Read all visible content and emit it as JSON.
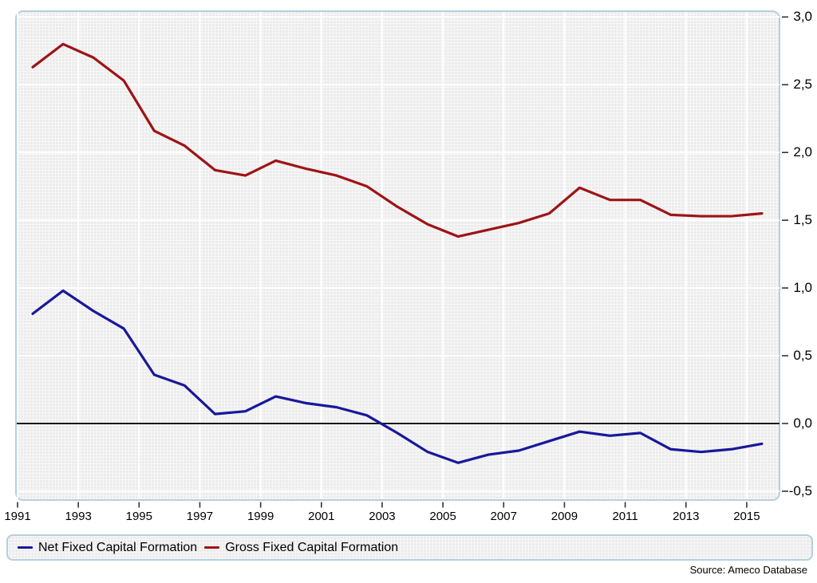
{
  "chart_data": {
    "type": "line",
    "x": [
      1991,
      1992,
      1993,
      1994,
      1995,
      1996,
      1997,
      1998,
      1999,
      2000,
      2001,
      2002,
      2003,
      2004,
      2005,
      2006,
      2007,
      2008,
      2009,
      2010,
      2011,
      2012,
      2013,
      2014,
      2015
    ],
    "series": [
      {
        "name": "Net Fixed Capital Formation",
        "color": "#18189b",
        "values": [
          0.81,
          0.98,
          0.83,
          0.7,
          0.36,
          0.28,
          0.07,
          0.09,
          0.2,
          0.15,
          0.12,
          0.06,
          -0.07,
          -0.21,
          -0.29,
          -0.23,
          -0.2,
          -0.13,
          -0.06,
          -0.09,
          -0.07,
          -0.19,
          -0.21,
          -0.19,
          -0.15
        ]
      },
      {
        "name": "Gross Fixed Capital Formation",
        "color": "#9e1316",
        "values": [
          2.63,
          2.8,
          2.7,
          2.53,
          2.16,
          2.05,
          1.87,
          1.83,
          1.94,
          1.88,
          1.83,
          1.75,
          1.6,
          1.47,
          1.38,
          1.43,
          1.48,
          1.55,
          1.74,
          1.65,
          1.65,
          1.54,
          1.53,
          1.53,
          1.55
        ]
      }
    ],
    "title": "",
    "xlabel": "",
    "ylabel": "",
    "ylim": [
      -0.5,
      3.0
    ],
    "x_tick_labels": [
      "1991",
      "1993",
      "1995",
      "1997",
      "1999",
      "2001",
      "2003",
      "2005",
      "2007",
      "2009",
      "2011",
      "2013",
      "2015"
    ],
    "y_tick_values": [
      3.0,
      2.5,
      2.0,
      1.5,
      1.0,
      0.5,
      0.0,
      -0.5
    ],
    "y_tick_labels": [
      "3,0",
      "2,5",
      "2,0",
      "1,5",
      "1,0",
      "0,5",
      "0,0",
      "-0,5"
    ],
    "grid": true,
    "zero_line": 0.0,
    "legend_position": "bottom"
  },
  "colors": {
    "panel_background": "#ececec",
    "panel_border": "#b4cfe2",
    "major_grid": "#ffffff",
    "zero_line": "#1a1a1a",
    "tick": "#333333"
  },
  "source_note": "Source: Ameco Database"
}
